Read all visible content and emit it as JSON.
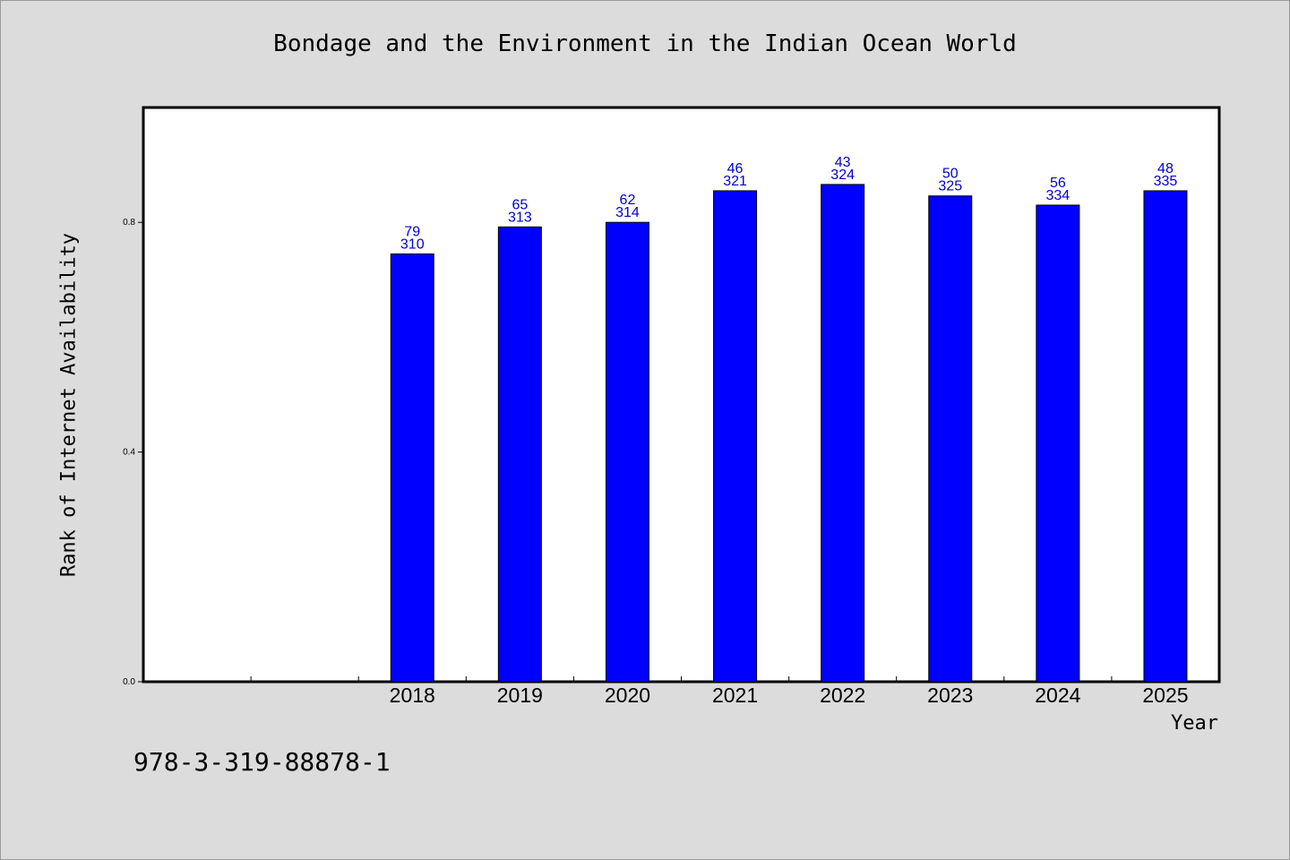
{
  "chart_data": {
    "type": "bar",
    "title": "Bondage and the Environment in the Indian Ocean World",
    "xlabel": "Year",
    "ylabel": "Rank of Internet Availability",
    "categories": [
      "",
      "",
      "2018",
      "2019",
      "2020",
      "2021",
      "2022",
      "2023",
      "2024",
      "2025"
    ],
    "values": [
      null,
      null,
      0.745,
      0.792,
      0.8,
      0.855,
      0.866,
      0.846,
      0.83,
      0.855
    ],
    "label_top": [
      "",
      "",
      "79",
      "65",
      "62",
      "46",
      "43",
      "50",
      "56",
      "48"
    ],
    "label_bottom": [
      "",
      "",
      "310",
      "313",
      "314",
      "321",
      "324",
      "325",
      "334",
      "335"
    ],
    "ylim": [
      0,
      1.0
    ],
    "yticks": [
      0.0,
      0.4,
      0.8
    ],
    "ytick_labels": [
      "0.0",
      "0.4",
      "0.8"
    ],
    "grid": false,
    "bar_color": "#0000ff",
    "label_color": "#0000cc"
  },
  "footnote": "978-3-319-88878-1"
}
